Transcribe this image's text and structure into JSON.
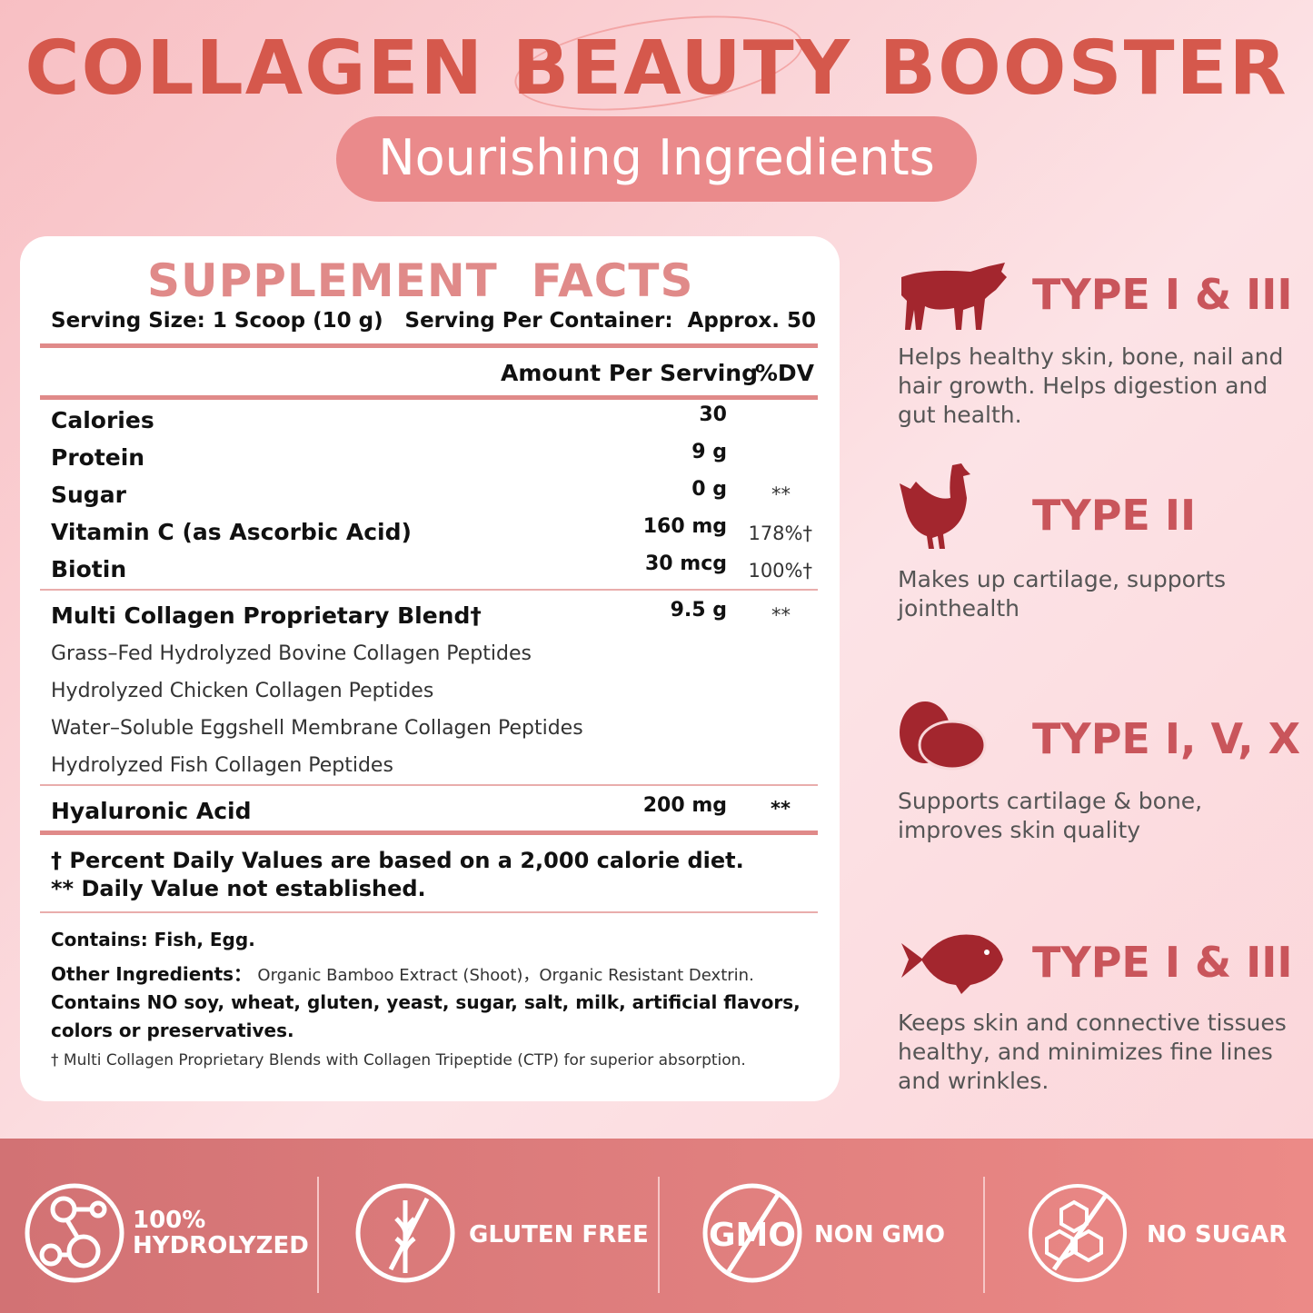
{
  "header": {
    "title": "COLLAGEN BEAUTY BOOSTER",
    "subtitle": "Nourishing Ingredients"
  },
  "facts": {
    "title": "SUPPLEMENT  FACTS",
    "serving_size": "Serving Size: 1 Scoop (10 g)",
    "servings": "Serving Per Container:  Approx. 50",
    "col_amount": "Amount Per Serving",
    "col_dv": "%DV",
    "rows": [
      {
        "name": "Calories",
        "amount": "30",
        "dv": ""
      },
      {
        "name": "Protein",
        "amount": "9 g",
        "dv": ""
      },
      {
        "name": "Sugar",
        "amount": "0 g",
        "dv": "**"
      },
      {
        "name": "Vitamin C (as Ascorbic Acid)",
        "amount": "160 mg",
        "dv": "178%†"
      },
      {
        "name": "Biotin",
        "amount": "30 mcg",
        "dv": "100%†"
      }
    ],
    "blend": {
      "name": "Multi Collagen Proprietary Blend†",
      "amount": "9.5 g",
      "dv": "**",
      "items": [
        "Grass–Fed Hydrolyzed Bovine Collagen Peptides",
        "Hydrolyzed Chicken Collagen Peptides",
        "Water–Soluble Eggshell Membrane Collagen Peptides",
        "Hydrolyzed Fish Collagen Peptides"
      ]
    },
    "ha": {
      "name": "Hyaluronic Acid",
      "amount": "200 mg",
      "dv": "**"
    },
    "note1": "† Percent Daily Values are based on a 2,000 calorie diet.",
    "note2": "** Daily Value not established.",
    "contains": "Contains: Fish, Egg.",
    "other_label": "Other Ingredients：",
    "other_value": "Organic Bamboo Extract (Shoot)，Organic Resistant Dextrin.",
    "no_list": "Contains NO soy, wheat, gluten, yeast, sugar, salt, milk, artificial flavors, colors or preservatives.",
    "footnote": "† Multi Collagen Proprietary Blends with Collagen Tripeptide (CTP) for superior absorption."
  },
  "types": [
    {
      "icon": "cow-icon",
      "title": "TYPE I & III",
      "text": "Helps healthy skin, bone, nail and hair growth. Helps digestion and gut health."
    },
    {
      "icon": "chicken-icon",
      "title": "TYPE II",
      "text": "Makes up cartilage, supports jointhealth"
    },
    {
      "icon": "egg-icon",
      "title": "TYPE I, V, X",
      "text": "Supports cartilage & bone, improves skin quality"
    },
    {
      "icon": "fish-icon",
      "title": "TYPE I & III",
      "text": "Keeps skin and connective tissues healthy, and minimizes fine lines and wrinkles."
    }
  ],
  "badges": [
    {
      "icon": "molecule-icon",
      "line1": "100%",
      "line2": "HYDROLYZED"
    },
    {
      "icon": "no-wheat-icon",
      "label": "GLUTEN FREE"
    },
    {
      "icon": "no-gmo-icon",
      "label": "NON GMO"
    },
    {
      "icon": "no-sugar-cube-icon",
      "label": "NO SUGAR"
    }
  ],
  "colors": {
    "title": "#d5584c",
    "pill": "#ea8a8b",
    "icon": "#a3262e",
    "type_heading": "#c9555b",
    "band": "#d27274"
  }
}
